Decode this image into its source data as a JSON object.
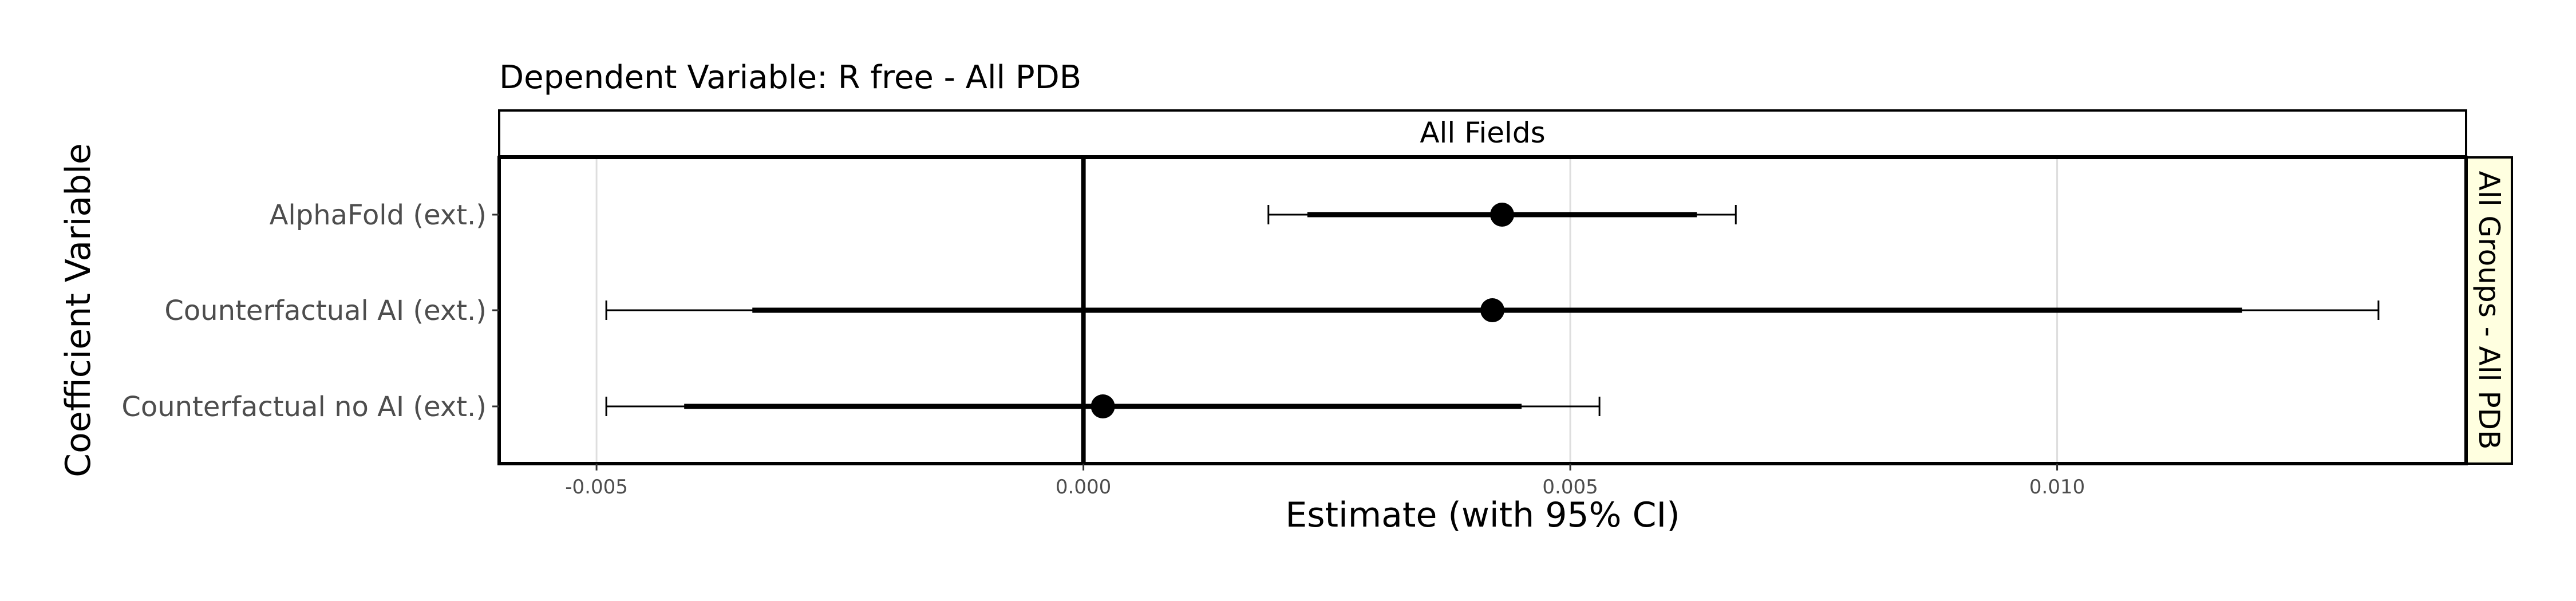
{
  "chart_data": {
    "type": "forest",
    "title": "Dependent Variable: R free  -  All PDB",
    "facet_column": "All Fields",
    "facet_row": "All Groups - All PDB",
    "xlabel": "Estimate (with 95% CI)",
    "ylabel": "Coefficient Variable",
    "xlim": [
      -0.006,
      0.0142
    ],
    "x_ticks": [
      -0.005,
      0.0,
      0.005,
      0.01
    ],
    "x_tick_labels": [
      "-0.005",
      "0.000",
      "0.005",
      "0.010"
    ],
    "reference_line": 0,
    "grid": true,
    "rows": [
      {
        "label": "AlphaFold (ext.)",
        "estimate": 0.0043,
        "ci_inner": [
          0.0023,
          0.0063
        ],
        "ci": [
          0.0019,
          0.0067
        ]
      },
      {
        "label": "Counterfactual AI (ext.)",
        "estimate": 0.0042,
        "ci_inner": [
          -0.0034,
          0.0119
        ],
        "ci": [
          -0.0049,
          0.0133
        ]
      },
      {
        "label": "Counterfactual no AI (ext.)",
        "estimate": 0.0002,
        "ci_inner": [
          -0.0041,
          0.0045
        ],
        "ci": [
          -0.0049,
          0.0053
        ]
      }
    ],
    "colors": {
      "marks": "#000000",
      "grid": "#dedede",
      "strip_top": "#ffffff",
      "strip_right": "#ffffe0"
    }
  }
}
